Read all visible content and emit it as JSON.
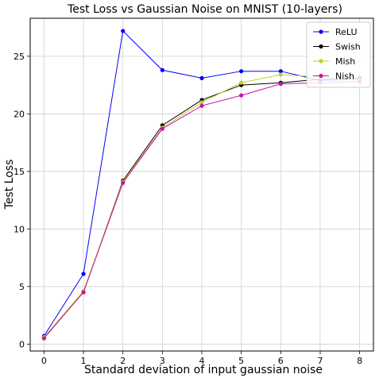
{
  "chart_data": {
    "type": "line",
    "title": "Test Loss vs Gaussian Noise on MNIST (10-layers)",
    "xlabel": "Standard deviation of input gaussian noise",
    "ylabel": "Test Loss",
    "x": [
      0,
      1,
      2,
      3,
      4,
      5,
      6,
      7,
      8
    ],
    "xlim": [
      -0.35,
      8.35
    ],
    "ylim": [
      -0.6,
      28.3
    ],
    "xticks": [
      "0",
      "1",
      "2",
      "3",
      "4",
      "5",
      "6",
      "7",
      "8"
    ],
    "yticks": [
      "0",
      "5",
      "10",
      "15",
      "20",
      "25"
    ],
    "grid": true,
    "legend_position": "top-right",
    "series": [
      {
        "name": "ReLU",
        "color": "#0000ff",
        "values": [
          0.7,
          6.1,
          27.2,
          23.8,
          23.1,
          23.7,
          23.7,
          22.9,
          23.0
        ]
      },
      {
        "name": "Swish",
        "color": "#000000",
        "values": [
          0.6,
          4.5,
          14.2,
          19.0,
          21.2,
          22.5,
          22.7,
          23.0,
          23.1
        ]
      },
      {
        "name": "Mish",
        "color": "#bcd12a",
        "values": [
          0.6,
          4.6,
          14.1,
          18.8,
          21.0,
          22.7,
          23.4,
          23.2,
          22.9
        ]
      },
      {
        "name": "Nish",
        "color": "#cc11aa",
        "values": [
          0.5,
          4.5,
          14.0,
          18.7,
          20.7,
          21.6,
          22.6,
          22.7,
          22.8
        ]
      }
    ]
  }
}
